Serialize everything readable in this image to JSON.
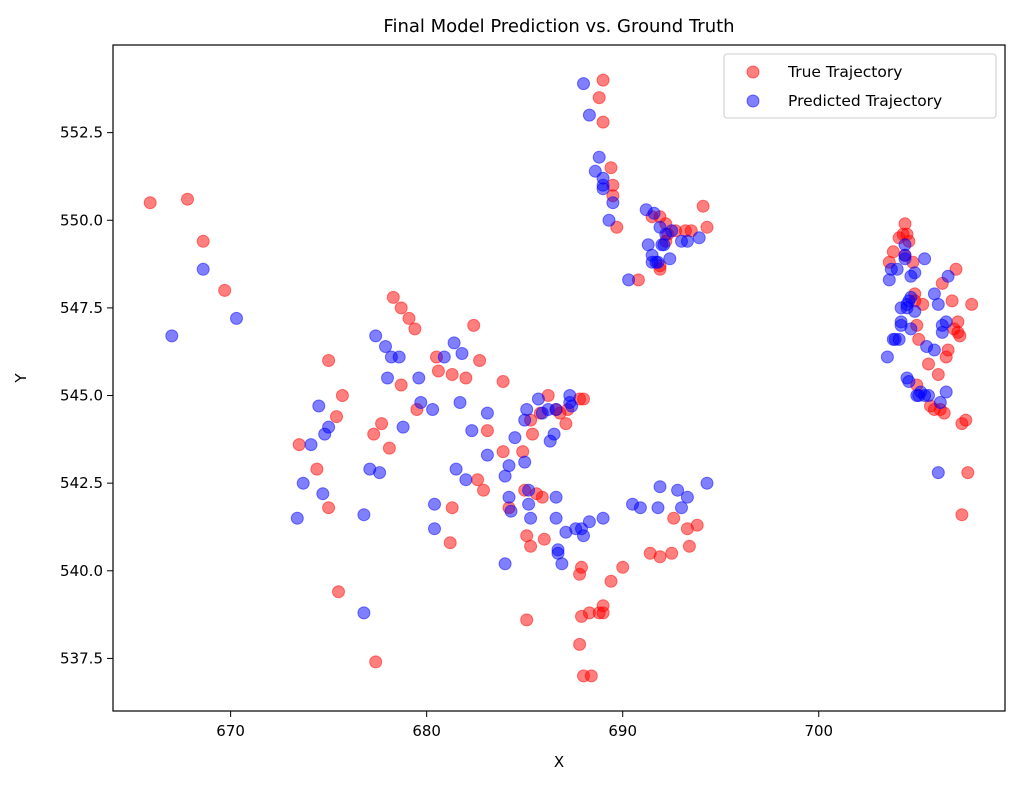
{
  "chart_data": {
    "type": "scatter",
    "title": "Final Model Prediction vs. Ground Truth",
    "xlabel": "X",
    "ylabel": "Y",
    "xlim": [
      664,
      709.5
    ],
    "ylim": [
      536.0,
      555.0
    ],
    "xticks": [
      670,
      680,
      690,
      700
    ],
    "yticks": [
      537.5,
      540.0,
      542.5,
      545.0,
      547.5,
      550.0,
      552.5
    ],
    "xtick_labels": [
      "670",
      "680",
      "690",
      "700"
    ],
    "ytick_labels": [
      "537.5",
      "540.0",
      "542.5",
      "545.0",
      "547.5",
      "550.0",
      "552.5"
    ],
    "grid": false,
    "legend_position": "top-right",
    "series": [
      {
        "name": "True Trajectory",
        "color": "#ff0000",
        "points": [
          [
            665.9,
            550.5
          ],
          [
            667.8,
            550.6
          ],
          [
            668.6,
            549.4
          ],
          [
            669.7,
            548.0
          ],
          [
            673.5,
            543.6
          ],
          [
            674.4,
            542.9
          ],
          [
            675.0,
            546.0
          ],
          [
            675.4,
            544.4
          ],
          [
            675.7,
            545.0
          ],
          [
            675.0,
            541.8
          ],
          [
            675.5,
            539.4
          ],
          [
            677.3,
            543.9
          ],
          [
            677.7,
            544.2
          ],
          [
            678.1,
            543.5
          ],
          [
            678.3,
            547.8
          ],
          [
            678.7,
            547.5
          ],
          [
            679.1,
            547.2
          ],
          [
            679.4,
            546.9
          ],
          [
            678.7,
            545.3
          ],
          [
            679.5,
            544.6
          ],
          [
            677.4,
            537.4
          ],
          [
            680.5,
            546.1
          ],
          [
            680.6,
            545.7
          ],
          [
            681.3,
            545.6
          ],
          [
            681.3,
            541.8
          ],
          [
            681.2,
            540.8
          ],
          [
            682.0,
            545.5
          ],
          [
            682.4,
            547.0
          ],
          [
            682.7,
            546.0
          ],
          [
            682.6,
            542.6
          ],
          [
            682.9,
            542.3
          ],
          [
            683.1,
            544.0
          ],
          [
            683.9,
            545.4
          ],
          [
            683.9,
            543.4
          ],
          [
            684.2,
            541.8
          ],
          [
            684.9,
            543.4
          ],
          [
            685.0,
            542.3
          ],
          [
            685.1,
            541.0
          ],
          [
            685.3,
            540.7
          ],
          [
            685.3,
            544.3
          ],
          [
            685.4,
            543.9
          ],
          [
            685.1,
            538.6
          ],
          [
            685.6,
            542.2
          ],
          [
            685.8,
            544.5
          ],
          [
            685.9,
            542.1
          ],
          [
            686.0,
            540.9
          ],
          [
            686.2,
            545.0
          ],
          [
            686.6,
            544.6
          ],
          [
            686.8,
            544.5
          ],
          [
            687.1,
            544.2
          ],
          [
            687.2,
            544.6
          ],
          [
            687.8,
            544.9
          ],
          [
            688.0,
            544.9
          ],
          [
            687.9,
            540.1
          ],
          [
            687.8,
            539.9
          ],
          [
            687.8,
            537.9
          ],
          [
            687.9,
            538.7
          ],
          [
            688.0,
            537.0
          ],
          [
            688.3,
            538.8
          ],
          [
            688.4,
            537.0
          ],
          [
            688.8,
            538.8
          ],
          [
            689.0,
            538.8
          ],
          [
            689.0,
            539.0
          ],
          [
            689.4,
            539.7
          ],
          [
            690.0,
            540.1
          ],
          [
            691.4,
            540.5
          ],
          [
            691.9,
            540.4
          ],
          [
            692.5,
            540.5
          ],
          [
            692.6,
            541.5
          ],
          [
            693.3,
            541.2
          ],
          [
            693.4,
            540.7
          ],
          [
            693.8,
            541.3
          ],
          [
            688.8,
            553.5
          ],
          [
            689.0,
            554.0
          ],
          [
            689.0,
            552.8
          ],
          [
            689.4,
            551.5
          ],
          [
            689.5,
            550.7
          ],
          [
            689.5,
            551.0
          ],
          [
            689.7,
            549.8
          ],
          [
            690.8,
            548.3
          ],
          [
            691.5,
            550.1
          ],
          [
            691.9,
            550.1
          ],
          [
            692.2,
            549.9
          ],
          [
            692.3,
            549.6
          ],
          [
            692.2,
            549.4
          ],
          [
            691.9,
            548.7
          ],
          [
            691.9,
            548.6
          ],
          [
            692.7,
            549.7
          ],
          [
            693.2,
            549.7
          ],
          [
            693.5,
            549.7
          ],
          [
            694.1,
            550.4
          ],
          [
            694.3,
            549.8
          ],
          [
            703.6,
            548.8
          ],
          [
            703.8,
            549.1
          ],
          [
            704.1,
            549.5
          ],
          [
            704.3,
            549.6
          ],
          [
            704.4,
            549.9
          ],
          [
            704.5,
            549.6
          ],
          [
            704.4,
            549.0
          ],
          [
            704.6,
            549.4
          ],
          [
            704.8,
            548.8
          ],
          [
            704.9,
            547.9
          ],
          [
            704.9,
            547.7
          ],
          [
            705.0,
            547.0
          ],
          [
            705.1,
            546.6
          ],
          [
            705.3,
            547.6
          ],
          [
            705.6,
            545.9
          ],
          [
            705.7,
            544.7
          ],
          [
            705.9,
            544.6
          ],
          [
            706.1,
            545.6
          ],
          [
            706.2,
            544.6
          ],
          [
            706.4,
            544.5
          ],
          [
            706.5,
            546.1
          ],
          [
            706.6,
            546.3
          ],
          [
            706.3,
            548.2
          ],
          [
            706.8,
            547.7
          ],
          [
            706.9,
            546.9
          ],
          [
            707.0,
            548.6
          ],
          [
            707.1,
            546.8
          ],
          [
            707.1,
            547.1
          ],
          [
            707.2,
            546.7
          ],
          [
            707.3,
            544.2
          ],
          [
            707.5,
            544.3
          ],
          [
            707.6,
            542.8
          ],
          [
            707.3,
            541.6
          ],
          [
            707.8,
            547.6
          ],
          [
            705.0,
            545.3
          ]
        ]
      },
      {
        "name": "Predicted Trajectory",
        "color": "#0000ff",
        "points": [
          [
            667.0,
            546.7
          ],
          [
            668.6,
            548.6
          ],
          [
            670.3,
            547.2
          ],
          [
            673.4,
            541.5
          ],
          [
            673.7,
            542.5
          ],
          [
            674.1,
            543.6
          ],
          [
            674.5,
            544.7
          ],
          [
            674.7,
            542.2
          ],
          [
            674.8,
            543.9
          ],
          [
            675.0,
            544.1
          ],
          [
            676.8,
            541.6
          ],
          [
            676.8,
            538.8
          ],
          [
            677.1,
            542.9
          ],
          [
            677.4,
            546.7
          ],
          [
            677.6,
            542.8
          ],
          [
            677.9,
            546.4
          ],
          [
            678.0,
            545.5
          ],
          [
            678.2,
            546.1
          ],
          [
            678.6,
            546.1
          ],
          [
            678.8,
            544.1
          ],
          [
            679.6,
            545.5
          ],
          [
            679.7,
            544.8
          ],
          [
            680.3,
            544.6
          ],
          [
            680.4,
            541.9
          ],
          [
            680.4,
            541.2
          ],
          [
            680.9,
            546.1
          ],
          [
            681.4,
            546.5
          ],
          [
            681.5,
            542.9
          ],
          [
            681.7,
            544.8
          ],
          [
            681.8,
            546.2
          ],
          [
            682.0,
            542.6
          ],
          [
            682.3,
            544.0
          ],
          [
            683.1,
            544.5
          ],
          [
            683.1,
            543.3
          ],
          [
            684.0,
            542.7
          ],
          [
            684.0,
            540.2
          ],
          [
            684.2,
            543.0
          ],
          [
            684.2,
            542.1
          ],
          [
            684.3,
            541.7
          ],
          [
            684.5,
            543.8
          ],
          [
            685.0,
            544.3
          ],
          [
            685.0,
            543.1
          ],
          [
            685.1,
            544.6
          ],
          [
            685.2,
            542.3
          ],
          [
            685.2,
            541.9
          ],
          [
            685.3,
            541.5
          ],
          [
            685.7,
            544.9
          ],
          [
            685.9,
            544.5
          ],
          [
            686.2,
            544.6
          ],
          [
            686.3,
            543.7
          ],
          [
            686.5,
            543.9
          ],
          [
            686.6,
            544.6
          ],
          [
            686.6,
            542.1
          ],
          [
            686.6,
            541.5
          ],
          [
            686.7,
            540.6
          ],
          [
            686.7,
            540.5
          ],
          [
            686.9,
            540.2
          ],
          [
            687.1,
            541.1
          ],
          [
            687.3,
            545.0
          ],
          [
            687.3,
            544.8
          ],
          [
            687.4,
            544.7
          ],
          [
            687.6,
            541.2
          ],
          [
            687.9,
            541.2
          ],
          [
            688.0,
            541.0
          ],
          [
            688.3,
            541.4
          ],
          [
            689.0,
            541.5
          ],
          [
            690.5,
            541.9
          ],
          [
            690.9,
            541.8
          ],
          [
            691.8,
            541.8
          ],
          [
            691.9,
            542.4
          ],
          [
            692.8,
            542.3
          ],
          [
            693.0,
            541.8
          ],
          [
            693.3,
            542.1
          ],
          [
            694.3,
            542.5
          ],
          [
            688.0,
            553.9
          ],
          [
            688.3,
            553.0
          ],
          [
            688.6,
            551.4
          ],
          [
            688.8,
            551.8
          ],
          [
            689.0,
            551.2
          ],
          [
            689.0,
            551.0
          ],
          [
            689.0,
            550.9
          ],
          [
            689.3,
            550.0
          ],
          [
            689.5,
            550.5
          ],
          [
            690.3,
            548.3
          ],
          [
            691.2,
            550.3
          ],
          [
            691.3,
            549.3
          ],
          [
            691.5,
            549.0
          ],
          [
            691.5,
            548.8
          ],
          [
            691.6,
            550.2
          ],
          [
            691.7,
            548.8
          ],
          [
            691.8,
            548.8
          ],
          [
            691.9,
            549.8
          ],
          [
            692.0,
            549.3
          ],
          [
            692.1,
            549.3
          ],
          [
            692.2,
            549.6
          ],
          [
            692.4,
            548.9
          ],
          [
            692.5,
            549.7
          ],
          [
            693.0,
            549.4
          ],
          [
            693.3,
            549.4
          ],
          [
            693.9,
            549.5
          ],
          [
            703.5,
            546.1
          ],
          [
            703.6,
            548.3
          ],
          [
            703.7,
            548.6
          ],
          [
            703.8,
            546.6
          ],
          [
            703.9,
            546.6
          ],
          [
            704.0,
            548.6
          ],
          [
            704.1,
            546.6
          ],
          [
            704.2,
            547.1
          ],
          [
            704.2,
            547.0
          ],
          [
            704.2,
            547.5
          ],
          [
            704.4,
            549.3
          ],
          [
            704.4,
            549.0
          ],
          [
            704.4,
            548.9
          ],
          [
            704.5,
            547.5
          ],
          [
            704.5,
            547.6
          ],
          [
            704.5,
            545.5
          ],
          [
            704.6,
            545.4
          ],
          [
            704.6,
            547.7
          ],
          [
            704.7,
            547.8
          ],
          [
            704.7,
            546.9
          ],
          [
            704.7,
            548.4
          ],
          [
            704.9,
            548.5
          ],
          [
            704.9,
            547.4
          ],
          [
            705.0,
            545.0
          ],
          [
            705.1,
            545.0
          ],
          [
            705.2,
            545.1
          ],
          [
            705.4,
            545.0
          ],
          [
            705.4,
            548.9
          ],
          [
            705.5,
            546.4
          ],
          [
            705.6,
            545.0
          ],
          [
            705.9,
            547.9
          ],
          [
            705.9,
            546.3
          ],
          [
            706.1,
            542.8
          ],
          [
            706.1,
            547.6
          ],
          [
            706.2,
            544.8
          ],
          [
            706.3,
            546.8
          ],
          [
            706.3,
            547.0
          ],
          [
            706.5,
            547.1
          ],
          [
            706.5,
            545.1
          ],
          [
            706.6,
            548.4
          ]
        ]
      }
    ]
  }
}
